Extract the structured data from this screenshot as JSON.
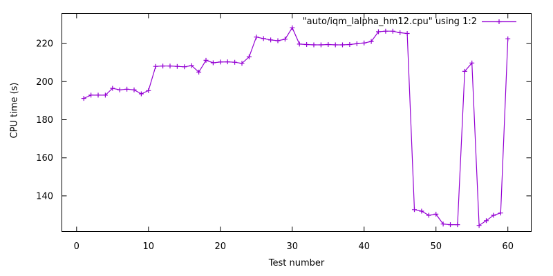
{
  "chart_data": {
    "type": "line",
    "legend_label": "\"auto/iqm_lalpha_hm12.cpu\" using 1:2",
    "xlabel": "Test number",
    "ylabel": "CPU time (s)",
    "x": [
      1,
      2,
      3,
      4,
      5,
      6,
      7,
      8,
      9,
      10,
      11,
      12,
      13,
      14,
      15,
      16,
      17,
      18,
      19,
      20,
      21,
      22,
      23,
      24,
      25,
      26,
      27,
      28,
      29,
      30,
      31,
      32,
      33,
      34,
      35,
      36,
      37,
      38,
      39,
      40,
      41,
      42,
      43,
      44,
      45,
      46,
      47,
      48,
      49,
      50,
      51,
      52,
      53,
      54,
      55,
      56,
      57,
      58,
      59,
      60
    ],
    "values": [
      191.2,
      192.9,
      192.9,
      192.9,
      196.5,
      195.7,
      196.0,
      195.7,
      193.6,
      195.3,
      208.0,
      208.2,
      208.2,
      208.0,
      207.8,
      208.4,
      205.0,
      211.2,
      209.9,
      210.3,
      210.4,
      210.2,
      209.6,
      213.0,
      223.4,
      222.6,
      221.9,
      221.5,
      222.3,
      228.3,
      219.7,
      219.5,
      219.3,
      219.3,
      219.5,
      219.3,
      219.3,
      219.5,
      219.9,
      220.3,
      221.1,
      226.2,
      226.5,
      226.5,
      225.7,
      225.3,
      132.8,
      132.0,
      129.8,
      130.4,
      125.2,
      124.9,
      124.9,
      205.4,
      209.8,
      124.5,
      127.0,
      129.8,
      131.0,
      222.5
    ],
    "xlim": [
      -2.05,
      63.25
    ],
    "ylim": [
      121.3,
      235.8
    ],
    "xticks": [
      0,
      10,
      20,
      30,
      40,
      50,
      60
    ],
    "yticks": [
      140,
      160,
      180,
      200,
      220
    ],
    "grid": false,
    "legend_position": "top-right-inside",
    "marker": "plus",
    "line_color": "#9400d3",
    "axis_color": "#000000",
    "background_color": "#ffffff"
  }
}
